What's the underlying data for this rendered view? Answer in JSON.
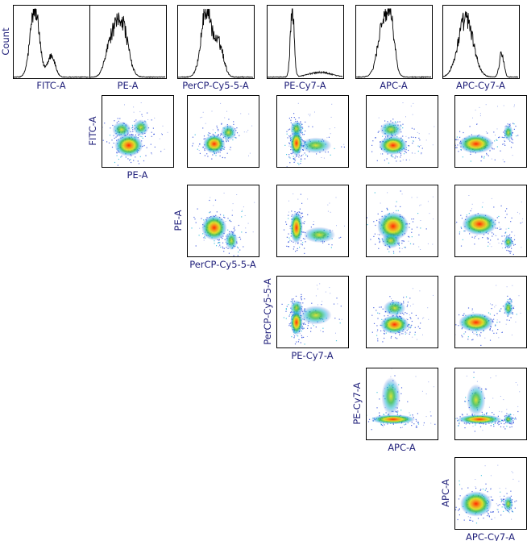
{
  "chart_data": {
    "type": "matrix",
    "ylabel_hist": "Count",
    "channels": [
      "FITC-A",
      "PE-A",
      "PerCP-Cy5-5-A",
      "PE-Cy7-A",
      "APC-A",
      "APC-Cy7-A"
    ],
    "colors": {
      "axis_label": "#1f1f7a",
      "histogram": "#000000",
      "density": [
        "#1e3fd8",
        "#17b3d6",
        "#2fb84a",
        "#d9e021",
        "#f7941d",
        "#ff2a00"
      ]
    },
    "histograms": [
      {
        "channel": "FITC-A",
        "peaks": [
          [
            0.28,
            0.06,
            1.0
          ],
          [
            0.5,
            0.05,
            0.32
          ]
        ]
      },
      {
        "channel": "PE-A",
        "peaks": [
          [
            0.27,
            0.07,
            0.45
          ],
          [
            0.42,
            0.08,
            0.8
          ]
        ]
      },
      {
        "channel": "PerCP-Cy5-5-A",
        "peaks": [
          [
            0.38,
            0.07,
            1.0
          ],
          [
            0.55,
            0.06,
            0.45
          ]
        ]
      },
      {
        "channel": "PE-Cy7-A",
        "peaks": [
          [
            0.33,
            0.025,
            1.0
          ],
          [
            0.7,
            0.15,
            0.07
          ]
        ]
      },
      {
        "channel": "APC-A",
        "peaks": [
          [
            0.38,
            0.08,
            0.9
          ],
          [
            0.48,
            0.04,
            0.4
          ]
        ]
      },
      {
        "channel": "APC-Cy7-A",
        "peaks": [
          [
            0.3,
            0.1,
            0.85
          ],
          [
            0.78,
            0.03,
            0.35
          ]
        ]
      }
    ],
    "scatter": [
      {
        "x": "PE-A",
        "y": "FITC-A",
        "clusters": [
          [
            0.38,
            0.3,
            0.09,
            0.07,
            1.0
          ],
          [
            0.28,
            0.52,
            0.06,
            0.05,
            0.45
          ],
          [
            0.55,
            0.55,
            0.05,
            0.05,
            0.3
          ]
        ]
      },
      {
        "x": "PerCP-Cy5-5-A",
        "y": "FITC-A",
        "clusters": [
          [
            0.38,
            0.32,
            0.07,
            0.06,
            1.0
          ],
          [
            0.58,
            0.48,
            0.05,
            0.05,
            0.4
          ]
        ]
      },
      {
        "x": "PE-Cy7-A",
        "y": "FITC-A",
        "clusters": [
          [
            0.28,
            0.33,
            0.04,
            0.08,
            1.0
          ],
          [
            0.28,
            0.53,
            0.04,
            0.05,
            0.5
          ],
          [
            0.55,
            0.3,
            0.1,
            0.05,
            0.35
          ]
        ]
      },
      {
        "x": "APC-A",
        "y": "FITC-A",
        "clusters": [
          [
            0.38,
            0.3,
            0.09,
            0.06,
            1.0
          ],
          [
            0.35,
            0.52,
            0.07,
            0.05,
            0.45
          ]
        ]
      },
      {
        "x": "APC-Cy7-A",
        "y": "FITC-A",
        "clusters": [
          [
            0.3,
            0.32,
            0.11,
            0.06,
            1.0
          ],
          [
            0.75,
            0.48,
            0.03,
            0.05,
            0.4
          ]
        ]
      },
      {
        "x": "PerCP-Cy5-5-A",
        "y": "PE-A",
        "clusters": [
          [
            0.38,
            0.4,
            0.08,
            0.08,
            1.0
          ],
          [
            0.62,
            0.22,
            0.04,
            0.06,
            0.5
          ]
        ]
      },
      {
        "x": "PE-Cy7-A",
        "y": "PE-A",
        "clusters": [
          [
            0.28,
            0.4,
            0.04,
            0.1,
            1.0
          ],
          [
            0.6,
            0.3,
            0.1,
            0.05,
            0.3
          ]
        ]
      },
      {
        "x": "APC-A",
        "y": "PE-A",
        "clusters": [
          [
            0.38,
            0.42,
            0.1,
            0.09,
            1.0
          ],
          [
            0.35,
            0.22,
            0.06,
            0.05,
            0.35
          ]
        ]
      },
      {
        "x": "APC-Cy7-A",
        "y": "PE-A",
        "clusters": [
          [
            0.35,
            0.45,
            0.11,
            0.07,
            1.0
          ],
          [
            0.75,
            0.2,
            0.03,
            0.04,
            0.4
          ]
        ]
      },
      {
        "x": "PE-Cy7-A",
        "y": "PerCP-Cy5-5-A",
        "clusters": [
          [
            0.28,
            0.35,
            0.04,
            0.08,
            1.0
          ],
          [
            0.28,
            0.55,
            0.04,
            0.05,
            0.5
          ],
          [
            0.55,
            0.45,
            0.1,
            0.06,
            0.3
          ]
        ]
      },
      {
        "x": "APC-A",
        "y": "PerCP-Cy5-5-A",
        "clusters": [
          [
            0.4,
            0.32,
            0.09,
            0.06,
            1.0
          ],
          [
            0.4,
            0.55,
            0.07,
            0.05,
            0.5
          ]
        ]
      },
      {
        "x": "APC-Cy7-A",
        "y": "PerCP-Cy5-5-A",
        "clusters": [
          [
            0.3,
            0.35,
            0.11,
            0.06,
            1.0
          ],
          [
            0.75,
            0.55,
            0.03,
            0.05,
            0.4
          ]
        ]
      },
      {
        "x": "APC-A",
        "y": "PE-Cy7-A",
        "clusters": [
          [
            0.38,
            0.28,
            0.14,
            0.03,
            1.0
          ],
          [
            0.35,
            0.6,
            0.06,
            0.12,
            0.25
          ]
        ]
      },
      {
        "x": "APC-Cy7-A",
        "y": "PE-Cy7-A",
        "clusters": [
          [
            0.35,
            0.28,
            0.14,
            0.03,
            1.0
          ],
          [
            0.75,
            0.28,
            0.03,
            0.03,
            0.4
          ],
          [
            0.3,
            0.55,
            0.06,
            0.1,
            0.2
          ]
        ]
      },
      {
        "x": "APC-Cy7-A",
        "y": "APC-A",
        "clusters": [
          [
            0.3,
            0.35,
            0.1,
            0.08,
            1.0
          ],
          [
            0.75,
            0.35,
            0.03,
            0.05,
            0.4
          ]
        ]
      }
    ]
  }
}
